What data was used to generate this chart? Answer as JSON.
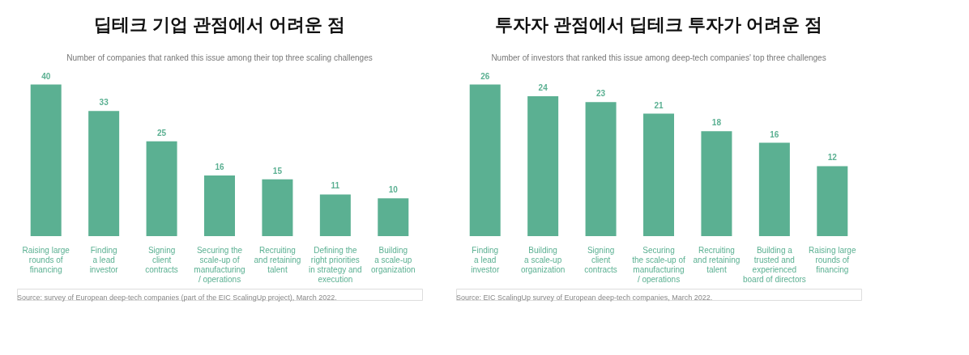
{
  "chart_data": [
    {
      "type": "bar",
      "title": "딥테크 기업 관점에서 어려운 점",
      "subtitle": "Number of companies that ranked this issue among their top three scaling challenges",
      "categories": [
        "Raising large\nrounds of\nfinancing",
        "Finding\na lead\ninvestor",
        "Signing\nclient\ncontracts",
        "Securing the\nscale-up of\nmanufacturing\n/ operations",
        "Recruiting\nand retaining\ntalent",
        "Defining the\nright priorities\nin strategy and\nexecution",
        "Building\na scale-up\norganization"
      ],
      "values": [
        40,
        33,
        25,
        16,
        15,
        11,
        10
      ],
      "color": "#5bb092",
      "data_labels": true,
      "tick_labels": "x",
      "grid": false,
      "annotations": [
        "Source: survey of European deep-tech companies (part of the EIC ScalingUp project), March 2022."
      ]
    },
    {
      "type": "bar",
      "title": "투자자 관점에서 딥테크 투자가 어려운 점",
      "subtitle": "Number of investors that ranked this issue among deep-tech companies' top three challenges",
      "categories": [
        "Finding\na lead\ninvestor",
        "Building\na scale-up\norganization",
        "Signing\nclient\ncontracts",
        "Securing\nthe scale-up of\nmanufacturing\n/ operations",
        "Recruiting\nand retaining\ntalent",
        "Building a\ntrusted and\nexperienced\nboard of directors",
        "Raising large\nrounds of\nfinancing"
      ],
      "values": [
        26,
        24,
        23,
        21,
        18,
        16,
        12
      ],
      "color": "#5bb092",
      "data_labels": true,
      "tick_labels": "x",
      "grid": false,
      "annotations": [
        "Source: EIC ScalingUp survey of European deep-tech companies, March 2022."
      ]
    }
  ]
}
